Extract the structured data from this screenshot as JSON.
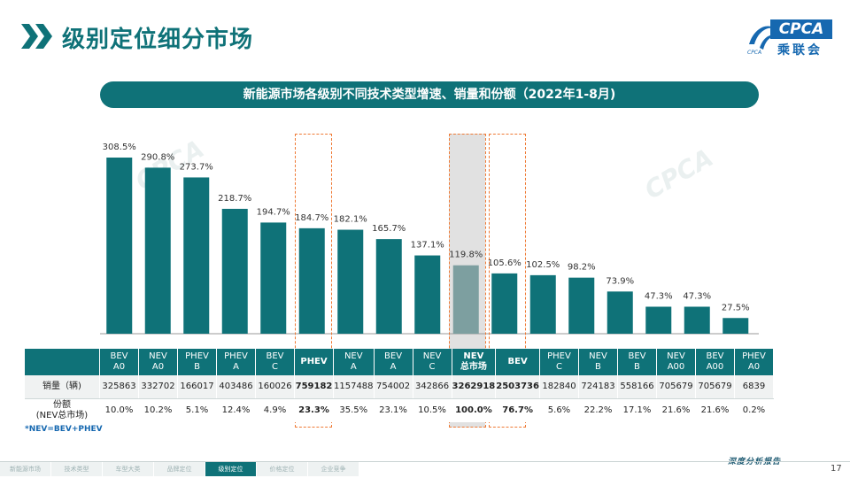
{
  "header": {
    "title": "级别定位细分市场",
    "logo_text": "CPCA",
    "logo_sub": "乘联会",
    "logo_tiny": "CPCA"
  },
  "chart_data": {
    "type": "bar",
    "title": "新能源市场各级别不同技术类型增速、销量和份额（2022年1-8月)",
    "xlabel": "",
    "ylabel": "",
    "ylim": [
      0,
      320
    ],
    "highlight_category": "NEV 总市场",
    "categories": [
      "BEV A0",
      "NEV A0",
      "PHEV B",
      "PHEV A",
      "BEV C",
      "PHEV",
      "NEV A",
      "BEV A",
      "NEV C",
      "NEV 总市场",
      "BEV",
      "PHEV C",
      "NEV B",
      "BEV B",
      "NEV A00",
      "BEV A00",
      "PHEV A0"
    ],
    "value_labels": [
      "308.5%",
      "290.8%",
      "273.7%",
      "218.7%",
      "194.7%",
      "184.7%",
      "182.1%",
      "165.7%",
      "137.1%",
      "119.8%",
      "105.6%",
      "102.5%",
      "98.2%",
      "73.9%",
      "47.3%",
      "47.3%",
      "27.5%"
    ],
    "series": [
      {
        "name": "增速",
        "values": [
          308.5,
          290.8,
          273.7,
          218.7,
          194.7,
          184.7,
          182.1,
          165.7,
          137.1,
          119.8,
          105.6,
          102.5,
          98.2,
          73.9,
          47.3,
          47.3,
          27.5
        ]
      }
    ]
  },
  "table": {
    "columns": [
      {
        "line1": "BEV",
        "line2": "A0"
      },
      {
        "line1": "NEV",
        "line2": "A0"
      },
      {
        "line1": "PHEV",
        "line2": "B"
      },
      {
        "line1": "PHEV",
        "line2": "A"
      },
      {
        "line1": "BEV",
        "line2": "C"
      },
      {
        "line1": "PHEV",
        "line2": ""
      },
      {
        "line1": "NEV",
        "line2": "A"
      },
      {
        "line1": "BEV",
        "line2": "A"
      },
      {
        "line1": "NEV",
        "line2": "C"
      },
      {
        "line1": "NEV",
        "line2": "总市场"
      },
      {
        "line1": "BEV",
        "line2": ""
      },
      {
        "line1": "PHEV",
        "line2": "C"
      },
      {
        "line1": "NEV",
        "line2": "B"
      },
      {
        "line1": "BEV",
        "line2": "B"
      },
      {
        "line1": "NEV",
        "line2": "A00"
      },
      {
        "line1": "BEV",
        "line2": "A00"
      },
      {
        "line1": "PHEV",
        "line2": "A0"
      }
    ],
    "row_labels": [
      "销量（辆)",
      "份额",
      "(NEV总市场)"
    ],
    "sales": [
      "325863",
      "332702",
      "166017",
      "403486",
      "160026",
      "759182",
      "1157488",
      "754002",
      "342866",
      "3262918",
      "2503736",
      "182840",
      "724183",
      "558166",
      "705679",
      "705679",
      "6839"
    ],
    "share": [
      "10.0%",
      "10.2%",
      "5.1%",
      "12.4%",
      "4.9%",
      "23.3%",
      "35.5%",
      "23.1%",
      "10.5%",
      "100.0%",
      "76.7%",
      "5.6%",
      "22.2%",
      "17.1%",
      "21.6%",
      "21.6%",
      "0.2%"
    ]
  },
  "footnote": "*NEV=BEV+PHEV",
  "footer": {
    "report_label": "深度分析报告",
    "page_number": "17",
    "nav": [
      "新能源市场",
      "技术类型",
      "车型大类",
      "品牌定位",
      "级别定位",
      "价格定位",
      "企业竞争"
    ],
    "nav_active_index": 4
  },
  "colors": {
    "primary": "#0f7278",
    "highlight_bar": "#7d9fa0",
    "dashed_box": "#ef7a35",
    "logo_blue": "#1668b0"
  }
}
